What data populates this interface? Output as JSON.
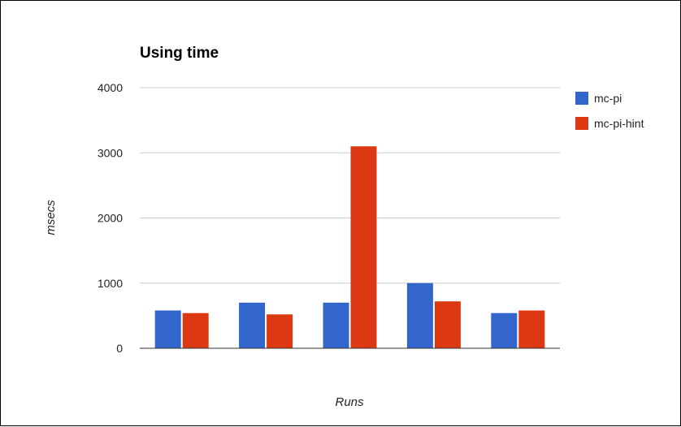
{
  "chart_data": {
    "type": "bar",
    "title": "Using time",
    "xlabel": "Runs",
    "ylabel": "msecs",
    "categories": [
      "",
      "",
      "",
      "",
      ""
    ],
    "series": [
      {
        "name": "mc-pi",
        "color": "#3366cc",
        "values": [
          580,
          700,
          700,
          1000,
          540
        ]
      },
      {
        "name": "mc-pi-hint",
        "color": "#dc3912",
        "values": [
          540,
          520,
          3100,
          720,
          580
        ]
      }
    ],
    "ylim": [
      0,
      4000
    ],
    "yticks": [
      "0",
      "1000",
      "2000",
      "3000",
      "4000"
    ],
    "grid": true,
    "legend_position": "right"
  }
}
